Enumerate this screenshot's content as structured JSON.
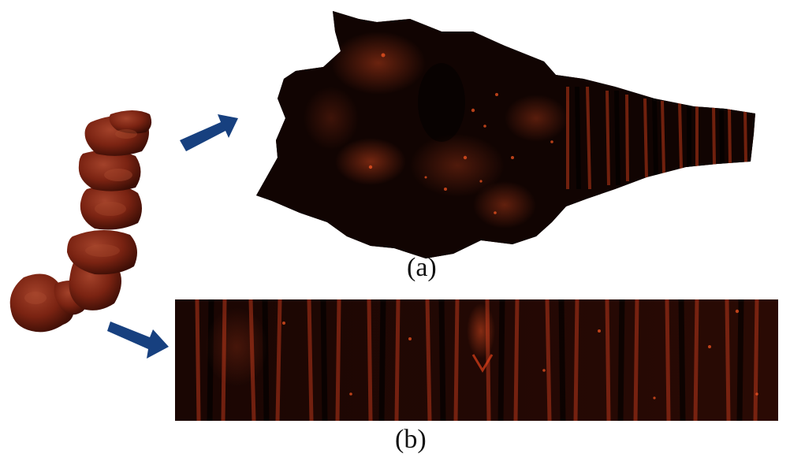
{
  "figure": {
    "caption_a": "(a)",
    "caption_b": "(b)"
  },
  "colors": {
    "colon_surface": "#7a2312",
    "colon_shadow": "#3a0d05",
    "flattened_dark": "#0d0302",
    "flattened_highlight": "#e0401a",
    "arrow": "#17407f",
    "background": "#ffffff"
  },
  "icons": {
    "arrow_a": "arrow-right-icon",
    "arrow_b": "arrow-right-icon"
  }
}
